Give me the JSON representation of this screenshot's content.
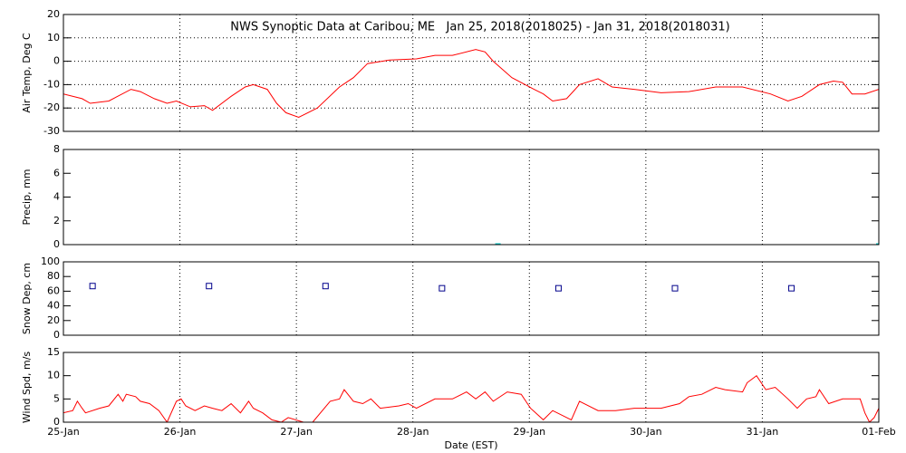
{
  "chart_data": [
    {
      "type": "line",
      "title": "NWS Synoptic Data at Caribou, ME   Jan 25, 2018(2018025) - Jan 31, 2018(2018031)",
      "y_label": "Air Temp, Deg C",
      "color": "#ff0000",
      "ygrid": true,
      "ylim": [
        -30,
        20
      ],
      "yticks": [
        -30,
        -20,
        -10,
        0,
        10,
        20
      ],
      "x": [
        0,
        0.16,
        0.23,
        0.39,
        0.58,
        0.66,
        0.78,
        0.89,
        0.97,
        1.09,
        1.21,
        1.28,
        1.44,
        1.56,
        1.63,
        1.75,
        1.83,
        1.91,
        2.02,
        2.18,
        2.37,
        2.49,
        2.61,
        2.8,
        3.03,
        3.19,
        3.34,
        3.54,
        3.62,
        3.69,
        3.85,
        4.04,
        4.12,
        4.2,
        4.32,
        4.43,
        4.59,
        4.71,
        4.9,
        5.13,
        5.37,
        5.6,
        5.83,
        6.07,
        6.22,
        6.34,
        6.49,
        6.61,
        6.69,
        6.77,
        6.88,
        7
      ],
      "values": [
        -14,
        -16,
        -18,
        -17,
        -12,
        -13,
        -16,
        -18,
        -17,
        -19.5,
        -19,
        -21,
        -15,
        -11,
        -10,
        -12,
        -18,
        -22,
        -24,
        -20,
        -11,
        -7,
        -1,
        0.5,
        1,
        2.5,
        2.5,
        5,
        4,
        0,
        -7,
        -12,
        -14,
        -17,
        -16,
        -10,
        -7.5,
        -11,
        -12,
        -13.5,
        -13,
        -11,
        -11,
        -14,
        -17,
        -15,
        -10,
        -8.5,
        -9,
        -14,
        -14,
        -12
      ]
    },
    {
      "type": "bar",
      "y_label": "Precip, mm",
      "color": "#00cccc",
      "ygrid": false,
      "ylim": [
        0,
        8
      ],
      "yticks": [
        0,
        2,
        4,
        6,
        8
      ],
      "x": [
        3.73,
        7
      ],
      "values": [
        0,
        0
      ]
    },
    {
      "type": "scatter",
      "y_label": "Snow Dep, cm",
      "color": "#00008b",
      "ygrid": false,
      "ylim": [
        0,
        100
      ],
      "yticks": [
        0,
        20,
        40,
        60,
        80,
        100
      ],
      "x": [
        0.25,
        1.25,
        2.25,
        3.25,
        4.25,
        5.25,
        6.25
      ],
      "values": [
        67,
        67,
        67,
        64,
        64,
        64,
        64
      ]
    },
    {
      "type": "line",
      "y_label": "Wind Spd, m/s",
      "x_label": "Date (EST)",
      "color": "#ff0000",
      "ygrid": false,
      "ylim": [
        0,
        15
      ],
      "yticks": [
        0,
        5,
        10,
        15
      ],
      "xlim": [
        0,
        7
      ],
      "xticks": [
        {
          "value": 0,
          "label": "25-Jan"
        },
        {
          "value": 1,
          "label": "26-Jan"
        },
        {
          "value": 2,
          "label": "27-Jan"
        },
        {
          "value": 3,
          "label": "28-Jan"
        },
        {
          "value": 4,
          "label": "29-Jan"
        },
        {
          "value": 5,
          "label": "30-Jan"
        },
        {
          "value": 6,
          "label": "31-Jan"
        },
        {
          "value": 7,
          "label": "01-Feb"
        }
      ],
      "x": [
        0,
        0.08,
        0.12,
        0.16,
        0.19,
        0.31,
        0.39,
        0.47,
        0.51,
        0.54,
        0.62,
        0.66,
        0.74,
        0.82,
        0.89,
        0.97,
        1.01,
        1.05,
        1.13,
        1.21,
        1.28,
        1.36,
        1.44,
        1.52,
        1.59,
        1.63,
        1.71,
        1.79,
        1.87,
        1.93,
        2.06,
        2.14,
        2.29,
        2.37,
        2.41,
        2.49,
        2.57,
        2.64,
        2.72,
        2.88,
        2.96,
        3.03,
        3.19,
        3.34,
        3.46,
        3.54,
        3.62,
        3.69,
        3.81,
        3.93,
        4.01,
        4.12,
        4.2,
        4.36,
        4.43,
        4.59,
        4.74,
        4.9,
        5.13,
        5.29,
        5.37,
        5.48,
        5.6,
        5.68,
        5.83,
        5.87,
        5.95,
        6.03,
        6.11,
        6.22,
        6.3,
        6.38,
        6.46,
        6.49,
        6.57,
        6.69,
        6.84,
        6.88,
        6.92,
        6.96,
        7
      ],
      "values": [
        2,
        2.5,
        4.5,
        3,
        2,
        3,
        3.5,
        6,
        4.5,
        6,
        5.5,
        4.5,
        4,
        2.5,
        0,
        4.5,
        5,
        3.5,
        2.5,
        3.5,
        3,
        2.5,
        4,
        2,
        4.5,
        3,
        2,
        0.5,
        0,
        1,
        0,
        0,
        4.5,
        5,
        7,
        4.5,
        4,
        5,
        3,
        3.5,
        4,
        3,
        5,
        5,
        6.5,
        5,
        6.5,
        4.5,
        6.5,
        6,
        3,
        0.5,
        2.5,
        0.5,
        4.5,
        2.5,
        2.5,
        3,
        3,
        4,
        5.5,
        6,
        7.5,
        7,
        6.5,
        8.5,
        10,
        7,
        7.5,
        5,
        3,
        5,
        5.5,
        7,
        4,
        5,
        5,
        2,
        0,
        1,
        3
      ]
    }
  ]
}
